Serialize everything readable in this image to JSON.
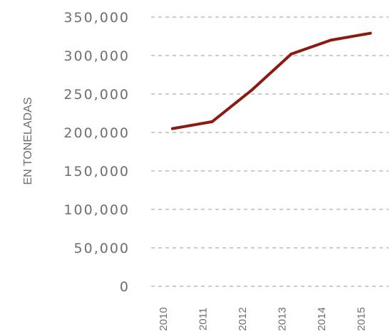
{
  "chart_data": {
    "type": "line",
    "title": "",
    "xlabel": "",
    "ylabel": "EN TONELADAS",
    "categories": [
      "2010",
      "2011",
      "2012",
      "2013",
      "2014",
      "2015"
    ],
    "series": [
      {
        "values": [
          205000,
          214000,
          255000,
          302000,
          320000,
          329000
        ],
        "color": "#8b1a10"
      }
    ],
    "y_ticks": [
      "0",
      "50,000",
      "100,000",
      "150,000",
      "200,000",
      "250,000",
      "300,000",
      "350,000"
    ],
    "ylim": [
      0,
      350000
    ],
    "grid": true,
    "legend": "none"
  }
}
